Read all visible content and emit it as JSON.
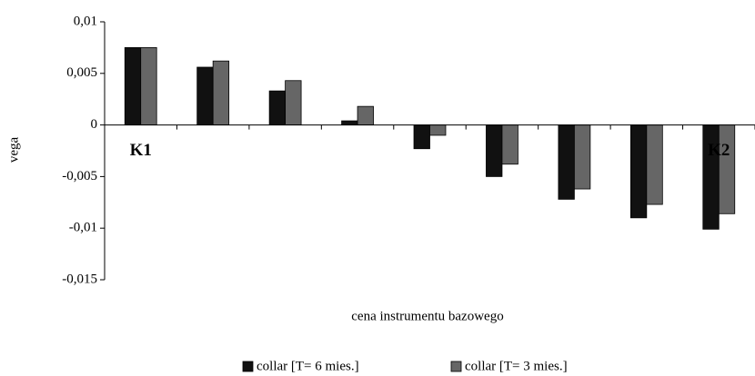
{
  "chart_data": {
    "type": "bar",
    "y_label": "vega",
    "x_label": "cena instrumentu bazowego",
    "categories": [
      null,
      null,
      null,
      null,
      null,
      null,
      null,
      null,
      null
    ],
    "series": [
      {
        "name": "collar [T= 6 mies.]",
        "color": "#111111",
        "values": [
          0.0075,
          0.0056,
          0.0033,
          0.0004,
          -0.0023,
          -0.005,
          -0.0072,
          -0.009,
          -0.0101
        ]
      },
      {
        "name": "collar [T= 3 mies.]",
        "color": "#666666",
        "values": [
          0.0075,
          0.0062,
          0.0043,
          0.0018,
          -0.001,
          -0.0038,
          -0.0062,
          -0.0077,
          -0.0086
        ]
      }
    ],
    "annotations": [
      "K1",
      "K2"
    ],
    "ylim": [
      -0.015,
      0.01
    ],
    "yticks": [
      {
        "value": -0.015,
        "label": "-0,015"
      },
      {
        "value": -0.01,
        "label": "-0,01"
      },
      {
        "value": -0.005,
        "label": "-0,005"
      },
      0,
      {
        "value": 0.005,
        "label": "0,005"
      },
      {
        "value": 0.01,
        "label": "0,01"
      }
    ]
  }
}
